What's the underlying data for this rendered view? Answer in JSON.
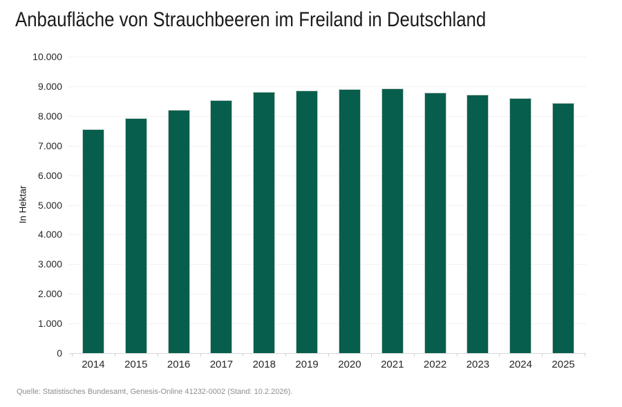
{
  "title": "Anbaufläche von Strauchbeeren im Freiland in Deutschland",
  "source": "Quelle: Statistisches Bundesamt, Genesis-Online 41232-0002 (Stand: 10.2.2026).",
  "colors": {
    "bar": "#085e4c",
    "bar_border": "#c5d2ce",
    "gridline": "#e4e4e4",
    "axis_line": "#d8d8d8",
    "title_text": "#1a1a1a",
    "tick_text": "#262626",
    "source_text": "#8e8e8e"
  },
  "chart_data": {
    "type": "bar",
    "title": "Anbaufläche von Strauchbeeren im Freiland in Deutschland",
    "xlabel": "",
    "ylabel": "In Hektar",
    "categories": [
      "2014",
      "2015",
      "2016",
      "2017",
      "2018",
      "2019",
      "2020",
      "2021",
      "2022",
      "2023",
      "2024",
      "2025"
    ],
    "values": [
      7560,
      7920,
      8210,
      8540,
      8820,
      8850,
      8900,
      8930,
      8780,
      8710,
      8610,
      8430
    ],
    "ylim": [
      0,
      10000
    ],
    "ytick_interval": 1000,
    "yticks": [
      {
        "value": 0,
        "label": "0"
      },
      {
        "value": 1000,
        "label": "1.000"
      },
      {
        "value": 2000,
        "label": "2.000"
      },
      {
        "value": 3000,
        "label": "3.000"
      },
      {
        "value": 4000,
        "label": "4.000"
      },
      {
        "value": 5000,
        "label": "5.000"
      },
      {
        "value": 6000,
        "label": "6.000"
      },
      {
        "value": 7000,
        "label": "7.000"
      },
      {
        "value": 8000,
        "label": "8.000"
      },
      {
        "value": 9000,
        "label": "9.000"
      },
      {
        "value": 10000,
        "label": "10.000"
      }
    ],
    "grid": "horizontal-dotted",
    "legend": "none",
    "bar_color": "#085e4c"
  }
}
